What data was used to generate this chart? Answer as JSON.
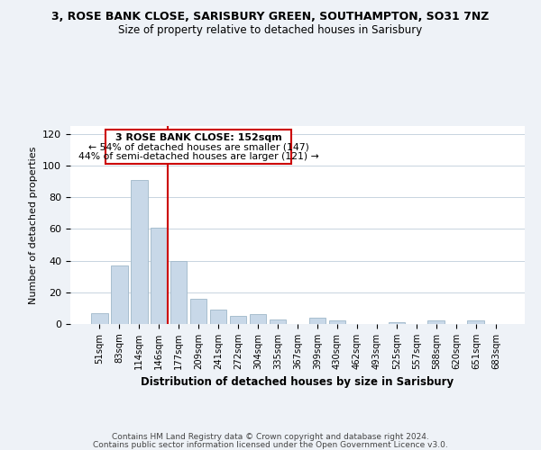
{
  "title": "3, ROSE BANK CLOSE, SARISBURY GREEN, SOUTHAMPTON, SO31 7NZ",
  "subtitle": "Size of property relative to detached houses in Sarisbury",
  "xlabel": "Distribution of detached houses by size in Sarisbury",
  "ylabel": "Number of detached properties",
  "bar_color": "#c8d8e8",
  "bar_edge_color": "#a8bece",
  "categories": [
    "51sqm",
    "83sqm",
    "114sqm",
    "146sqm",
    "177sqm",
    "209sqm",
    "241sqm",
    "272sqm",
    "304sqm",
    "335sqm",
    "367sqm",
    "399sqm",
    "430sqm",
    "462sqm",
    "493sqm",
    "525sqm",
    "557sqm",
    "588sqm",
    "620sqm",
    "651sqm",
    "683sqm"
  ],
  "values": [
    7,
    37,
    91,
    61,
    40,
    16,
    9,
    5,
    6,
    3,
    0,
    4,
    2,
    0,
    0,
    1,
    0,
    2,
    0,
    2,
    0
  ],
  "vline_color": "#cc0000",
  "annotation_title": "3 ROSE BANK CLOSE: 152sqm",
  "annotation_line1": "← 54% of detached houses are smaller (147)",
  "annotation_line2": "44% of semi-detached houses are larger (121) →",
  "annotation_box_color": "#cc0000",
  "ylim": [
    0,
    125
  ],
  "yticks": [
    0,
    20,
    40,
    60,
    80,
    100,
    120
  ],
  "footer1": "Contains HM Land Registry data © Crown copyright and database right 2024.",
  "footer2": "Contains public sector information licensed under the Open Government Licence v3.0.",
  "bg_color": "#eef2f7",
  "plot_bg_color": "#ffffff",
  "grid_color": "#c8d4e0"
}
